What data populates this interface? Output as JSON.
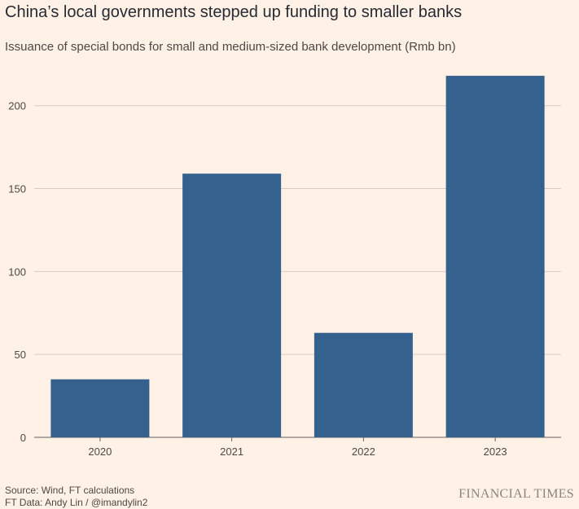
{
  "chart_data": {
    "type": "bar",
    "title": "China’s local governments stepped up funding to smaller banks",
    "subtitle": "Issuance of special bonds for small and medium-sized bank development (Rmb bn)",
    "categories": [
      "2020",
      "2021",
      "2022",
      "2023"
    ],
    "values": [
      35,
      159,
      63,
      218
    ],
    "ylim": [
      0,
      220
    ],
    "yticks": [
      0,
      50,
      100,
      150,
      200
    ],
    "grid": true,
    "bar_color": "#35618f"
  },
  "footer": {
    "source": "Source: Wind, FT calculations",
    "credit": "FT Data: Andy Lin / @imandylin2",
    "brand": "FINANCIAL TIMES"
  }
}
